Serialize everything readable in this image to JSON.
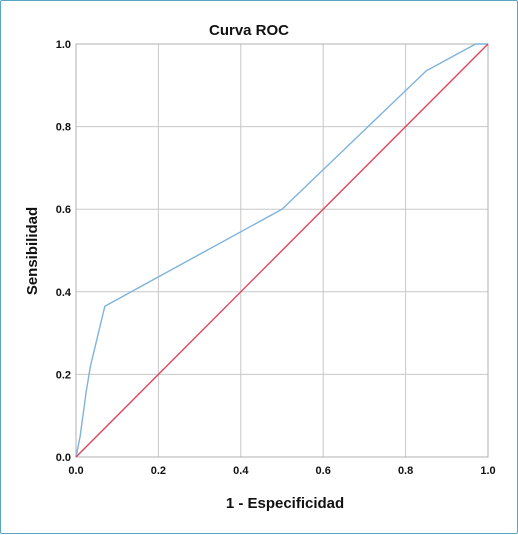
{
  "chart_data": {
    "type": "line",
    "title": "Curva ROC",
    "xlabel": "1 - Especificidad",
    "ylabel": "Sensibilidad",
    "xlim": [
      0,
      1
    ],
    "ylim": [
      0,
      1
    ],
    "x_ticks": [
      "0.0",
      "0.2",
      "0.4",
      "0.6",
      "0.8",
      "1.0"
    ],
    "y_ticks": [
      "0.0",
      "0.2",
      "0.4",
      "0.6",
      "0.8",
      "1.0"
    ],
    "grid": true,
    "series": [
      {
        "color": "#7eb3dc",
        "x": [
          0.0,
          0.01,
          0.025,
          0.035,
          0.07,
          0.5,
          0.85,
          0.97,
          1.0
        ],
        "y": [
          0.0,
          0.05,
          0.16,
          0.22,
          0.365,
          0.6,
          0.935,
          1.0,
          1.0
        ]
      },
      {
        "color": "#e0445a",
        "x": [
          0.0,
          1.0
        ],
        "y": [
          0.0,
          1.0
        ]
      }
    ]
  }
}
